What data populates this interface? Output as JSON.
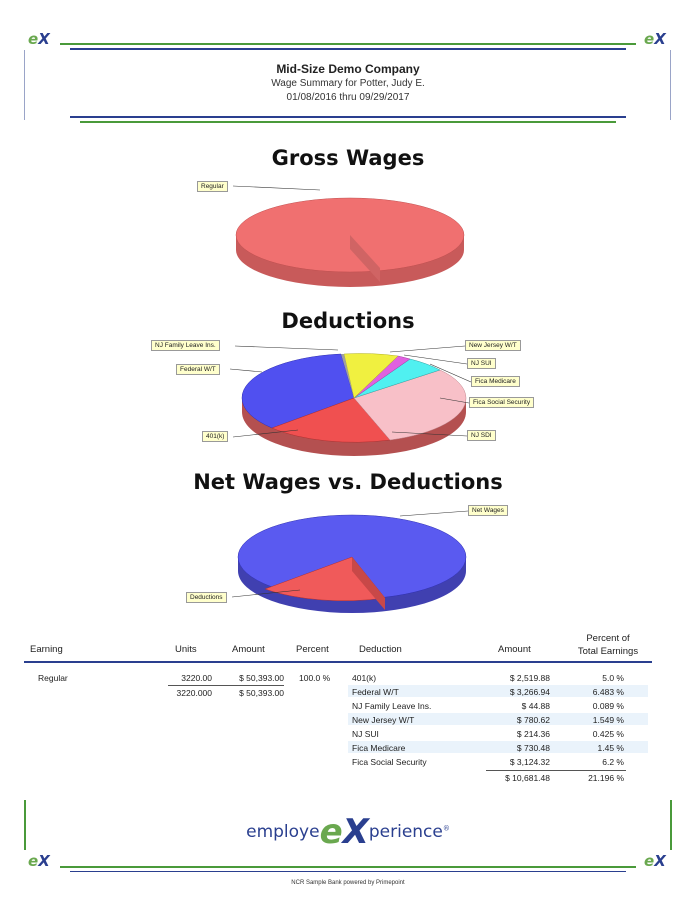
{
  "header": {
    "company": "Mid-Size Demo Company",
    "subtitle": "Wage Summary for Potter, Judy E.",
    "date_range": "01/08/2016  thru 09/29/2017",
    "corner_logo": "eX"
  },
  "charts": [
    {
      "type": "pie",
      "title": "Gross Wages",
      "slices": [
        {
          "label": "Regular",
          "value": 100.0,
          "color": "#f07070"
        }
      ]
    },
    {
      "type": "pie",
      "title": "Deductions",
      "slices": [
        {
          "label": "401(k)",
          "value": 2519.88,
          "color": "#f05050"
        },
        {
          "label": "Federal W/T",
          "value": 3266.94,
          "color": "#5050f0"
        },
        {
          "label": "NJ Family Leave Ins.",
          "value": 44.88,
          "color": "#a0a0a0"
        },
        {
          "label": "New Jersey W/T",
          "value": 780.62,
          "color": "#f0f040"
        },
        {
          "label": "NJ SUI",
          "value": 214.36,
          "color": "#e060e0"
        },
        {
          "label": "Fica Medicare",
          "value": 730.48,
          "color": "#50f0f0"
        },
        {
          "label": "Fica Social Security",
          "value": 3124.32,
          "color": "#f8c0c8"
        },
        {
          "label": "NJ SDI",
          "value": 0,
          "color": "#909090"
        }
      ]
    },
    {
      "type": "pie",
      "title": "Net Wages vs. Deductions",
      "slices": [
        {
          "label": "Net Wages",
          "value": 39711.52,
          "color": "#5a5af0"
        },
        {
          "label": "Deductions",
          "value": 10681.48,
          "color": "#f05a5a"
        }
      ]
    }
  ],
  "chart_data": [
    {
      "type": "pie",
      "title": "Gross Wages",
      "categories": [
        "Regular"
      ],
      "values": [
        50393.0
      ]
    },
    {
      "type": "pie",
      "title": "Deductions",
      "categories": [
        "401(k)",
        "Federal W/T",
        "NJ Family Leave Ins.",
        "New Jersey W/T",
        "NJ SUI",
        "Fica Medicare",
        "Fica Social Security",
        "NJ SDI"
      ],
      "values": [
        2519.88,
        3266.94,
        44.88,
        780.62,
        214.36,
        730.48,
        3124.32,
        0
      ]
    },
    {
      "type": "pie",
      "title": "Net Wages vs. Deductions",
      "categories": [
        "Net Wages",
        "Deductions"
      ],
      "values": [
        39711.52,
        10681.48
      ]
    }
  ],
  "earnings_table": {
    "headers": {
      "earning": "Earning",
      "units": "Units",
      "amount": "Amount",
      "percent": "Percent"
    },
    "rows": [
      {
        "earning": "Regular",
        "units": "3220.00",
        "amount": "$ 50,393.00",
        "percent": "100.0 %"
      }
    ],
    "totals": {
      "units": "3220.000",
      "amount": "$ 50,393.00"
    }
  },
  "deductions_table": {
    "headers": {
      "deduction": "Deduction",
      "amount": "Amount",
      "percent_line1": "Percent of",
      "percent_line2": "Total Earnings"
    },
    "rows": [
      {
        "deduction": "401(k)",
        "amount": "$ 2,519.88",
        "percent": "5.0 %"
      },
      {
        "deduction": "Federal W/T",
        "amount": "$ 3,266.94",
        "percent": "6.483 %"
      },
      {
        "deduction": "NJ Family Leave Ins.",
        "amount": "$ 44.88",
        "percent": "0.089 %"
      },
      {
        "deduction": "New Jersey W/T",
        "amount": "$ 780.62",
        "percent": "1.549 %"
      },
      {
        "deduction": "NJ SUI",
        "amount": "$ 214.36",
        "percent": "0.425 %"
      },
      {
        "deduction": "Fica Medicare",
        "amount": "$ 730.48",
        "percent": "1.45 %"
      },
      {
        "deduction": "Fica Social Security",
        "amount": "$ 3,124.32",
        "percent": "6.2 %"
      }
    ],
    "totals": {
      "amount": "$ 10,681.48",
      "percent": "21.196 %"
    }
  },
  "brand": {
    "pre": "employe",
    "mark": "eX",
    "post": "perience",
    "reg": "®"
  },
  "footer": "NCR Sample Bank powered by Primepoint"
}
